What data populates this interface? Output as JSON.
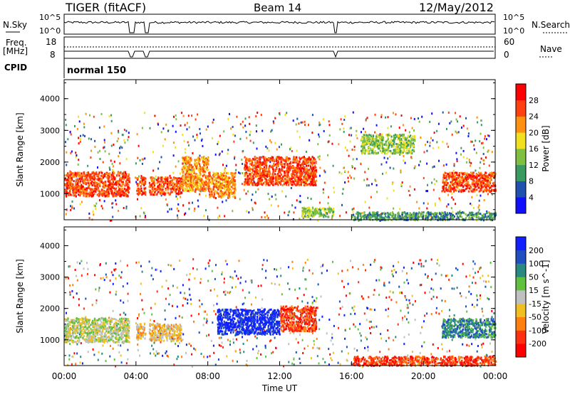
{
  "header": {
    "site": "TIGER (fitACF)",
    "beam": "Beam 14",
    "date": "12/May/2012"
  },
  "status_panels": {
    "nsky_label": "N.Sky",
    "nsky_ticks": [
      "10^5",
      "10^0"
    ],
    "nsearch_label": "N.Search",
    "freq_label": "Freq.",
    "freq_unit": "[MHz]",
    "freq_ticks": [
      "18",
      "8"
    ],
    "nave_label": "Nave",
    "nave_ticks": [
      "60",
      "0"
    ],
    "cpid_label": "CPID",
    "cpid_value": "normal 150"
  },
  "chart_data": [
    {
      "type": "heatmap",
      "panel": "power",
      "ylabel": "Slant Range [km]",
      "ylim": [
        180,
        4600
      ],
      "yticks": [
        "1000",
        "2000",
        "3000",
        "4000"
      ],
      "colorbar_label": "Power [dB]",
      "colorbar_ticks": [
        "4",
        "8",
        "12",
        "16",
        "20",
        "24",
        "28"
      ],
      "colors": [
        "#1010ff",
        "#2050b0",
        "#3a9a60",
        "#80c040",
        "#f0e020",
        "#ff9010",
        "#ff4010",
        "#ff0000"
      ],
      "regions": [
        {
          "t": [
            0.0,
            3.7
          ],
          "r": [
            950,
            1720
          ],
          "level": 6
        },
        {
          "t": [
            4.0,
            6.5
          ],
          "r": [
            1000,
            1550
          ],
          "level": 6
        },
        {
          "t": [
            6.5,
            8.0
          ],
          "r": [
            1100,
            2200
          ],
          "level": 5
        },
        {
          "t": [
            8.0,
            9.5
          ],
          "r": [
            900,
            1700
          ],
          "level": 5
        },
        {
          "t": [
            10.0,
            14.0
          ],
          "r": [
            1300,
            2200
          ],
          "level": 6
        },
        {
          "t": [
            13.2,
            15.0
          ],
          "r": [
            300,
            600
          ],
          "level": 3
        },
        {
          "t": [
            16.5,
            19.5
          ],
          "r": [
            2300,
            2900
          ],
          "level": 3
        },
        {
          "t": [
            21.0,
            24.0
          ],
          "r": [
            1100,
            1700
          ],
          "level": 6
        },
        {
          "t": [
            16.0,
            24.0
          ],
          "r": [
            200,
            450
          ],
          "level": 2
        }
      ]
    },
    {
      "type": "heatmap",
      "panel": "velocity",
      "ylabel": "Slant Range [km]",
      "ylim": [
        180,
        4600
      ],
      "yticks": [
        "1000",
        "2000",
        "3000",
        "4000"
      ],
      "xlabel": "Time UT",
      "xticks": [
        "00:00",
        "04:00",
        "08:00",
        "12:00",
        "16:00",
        "20:00",
        "00:00"
      ],
      "xlim": [
        0,
        24
      ],
      "colorbar_label": "Velocity [m s^-1]",
      "colorbar_ticks": [
        "200",
        "100",
        "50",
        "15",
        "-15",
        "-50",
        "-100",
        "-200"
      ],
      "colors": [
        "#1020ff",
        "#2050c0",
        "#2a8a80",
        "#60c040",
        "#c0c0c0",
        "#f0c020",
        "#ff8010",
        "#ff3010",
        "#ff0000"
      ],
      "regions": [
        {
          "t": [
            0.0,
            3.7
          ],
          "r": [
            950,
            1720
          ],
          "level": 4
        },
        {
          "t": [
            4.0,
            6.5
          ],
          "r": [
            1000,
            1550
          ],
          "level": 5
        },
        {
          "t": [
            8.5,
            12.0
          ],
          "r": [
            1200,
            2000
          ],
          "level": 0
        },
        {
          "t": [
            12.0,
            14.0
          ],
          "r": [
            1300,
            2100
          ],
          "level": 7
        },
        {
          "t": [
            16.0,
            24.0
          ],
          "r": [
            200,
            500
          ],
          "level": 7
        },
        {
          "t": [
            21.0,
            24.0
          ],
          "r": [
            1100,
            1700
          ],
          "level": 2
        }
      ]
    }
  ]
}
